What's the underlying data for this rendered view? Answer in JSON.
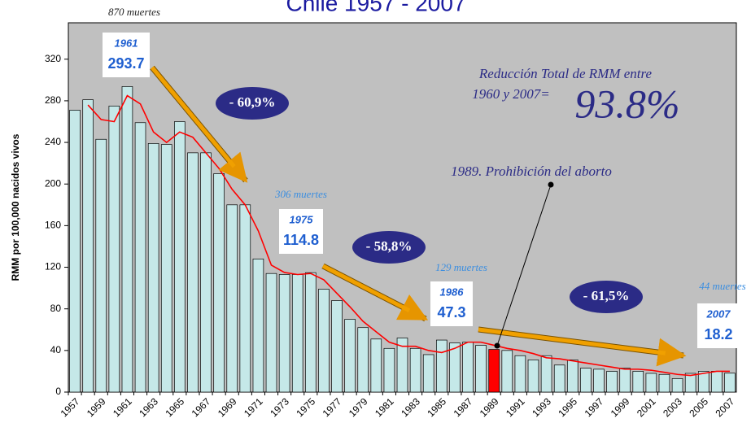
{
  "chart_data": {
    "type": "bar",
    "title": "Chile 1957 - 2007",
    "y_label": "RMM por 100,000 nacidos vivos",
    "categories": [
      "1957",
      null,
      "1959",
      null,
      "1961",
      null,
      "1963",
      null,
      "1965",
      null,
      "1967",
      null,
      "1969",
      null,
      "1971",
      null,
      "1973",
      null,
      "1975",
      null,
      "1977",
      null,
      "1979",
      null,
      "1981",
      null,
      "1983",
      null,
      "1985",
      null,
      "1987",
      null,
      "1989",
      null,
      "1991",
      null,
      "1993",
      null,
      "1995",
      null,
      "1997",
      null,
      "1999",
      null,
      "2001",
      null,
      "2003",
      null,
      "2005",
      null,
      "2007"
    ],
    "values": [
      271,
      281,
      243,
      275,
      293.7,
      259,
      239,
      238,
      260,
      230,
      230,
      210,
      180,
      180,
      128,
      114,
      113,
      113,
      114.8,
      99,
      88,
      70,
      62,
      51,
      42,
      52,
      42,
      36,
      50,
      47.3,
      48,
      45,
      41,
      40,
      35,
      31,
      35,
      26,
      31,
      23,
      22,
      20,
      23,
      20,
      18,
      17,
      13,
      18,
      20,
      20,
      18.2
    ],
    "color": "#c5e8e8",
    "highlight_category": "1989",
    "highlight_color": "#ff0000",
    "line_values": [
      null,
      276,
      262,
      260,
      285,
      277,
      250,
      240,
      250,
      245,
      230,
      215,
      195,
      180,
      155,
      122,
      115,
      113,
      114,
      108,
      95,
      82,
      68,
      58,
      48,
      44,
      44,
      40,
      38,
      42,
      48,
      48,
      45,
      42,
      40,
      37,
      33,
      32,
      30,
      28,
      26,
      24,
      22,
      22,
      21,
      19,
      17,
      16,
      18,
      20,
      20
    ],
    "line_color": "#ff0000",
    "ylim": [
      0,
      355
    ],
    "yticks": [
      0,
      40,
      80,
      120,
      160,
      200,
      240,
      280,
      320
    ],
    "annotations": {
      "deaths": [
        "870 muertes",
        "306 muertes",
        "129 muertes",
        "44 muertes"
      ],
      "year_1986": "1986",
      "reductions": [
        "- 60,9%",
        "- 58,8%",
        "- 61,5%"
      ],
      "total_line1": "Reducción Total de RMM entre",
      "total_line2": "1960 y 2007=",
      "total_value": "93.8%",
      "event": "1989. Prohibición del aborto"
    }
  }
}
